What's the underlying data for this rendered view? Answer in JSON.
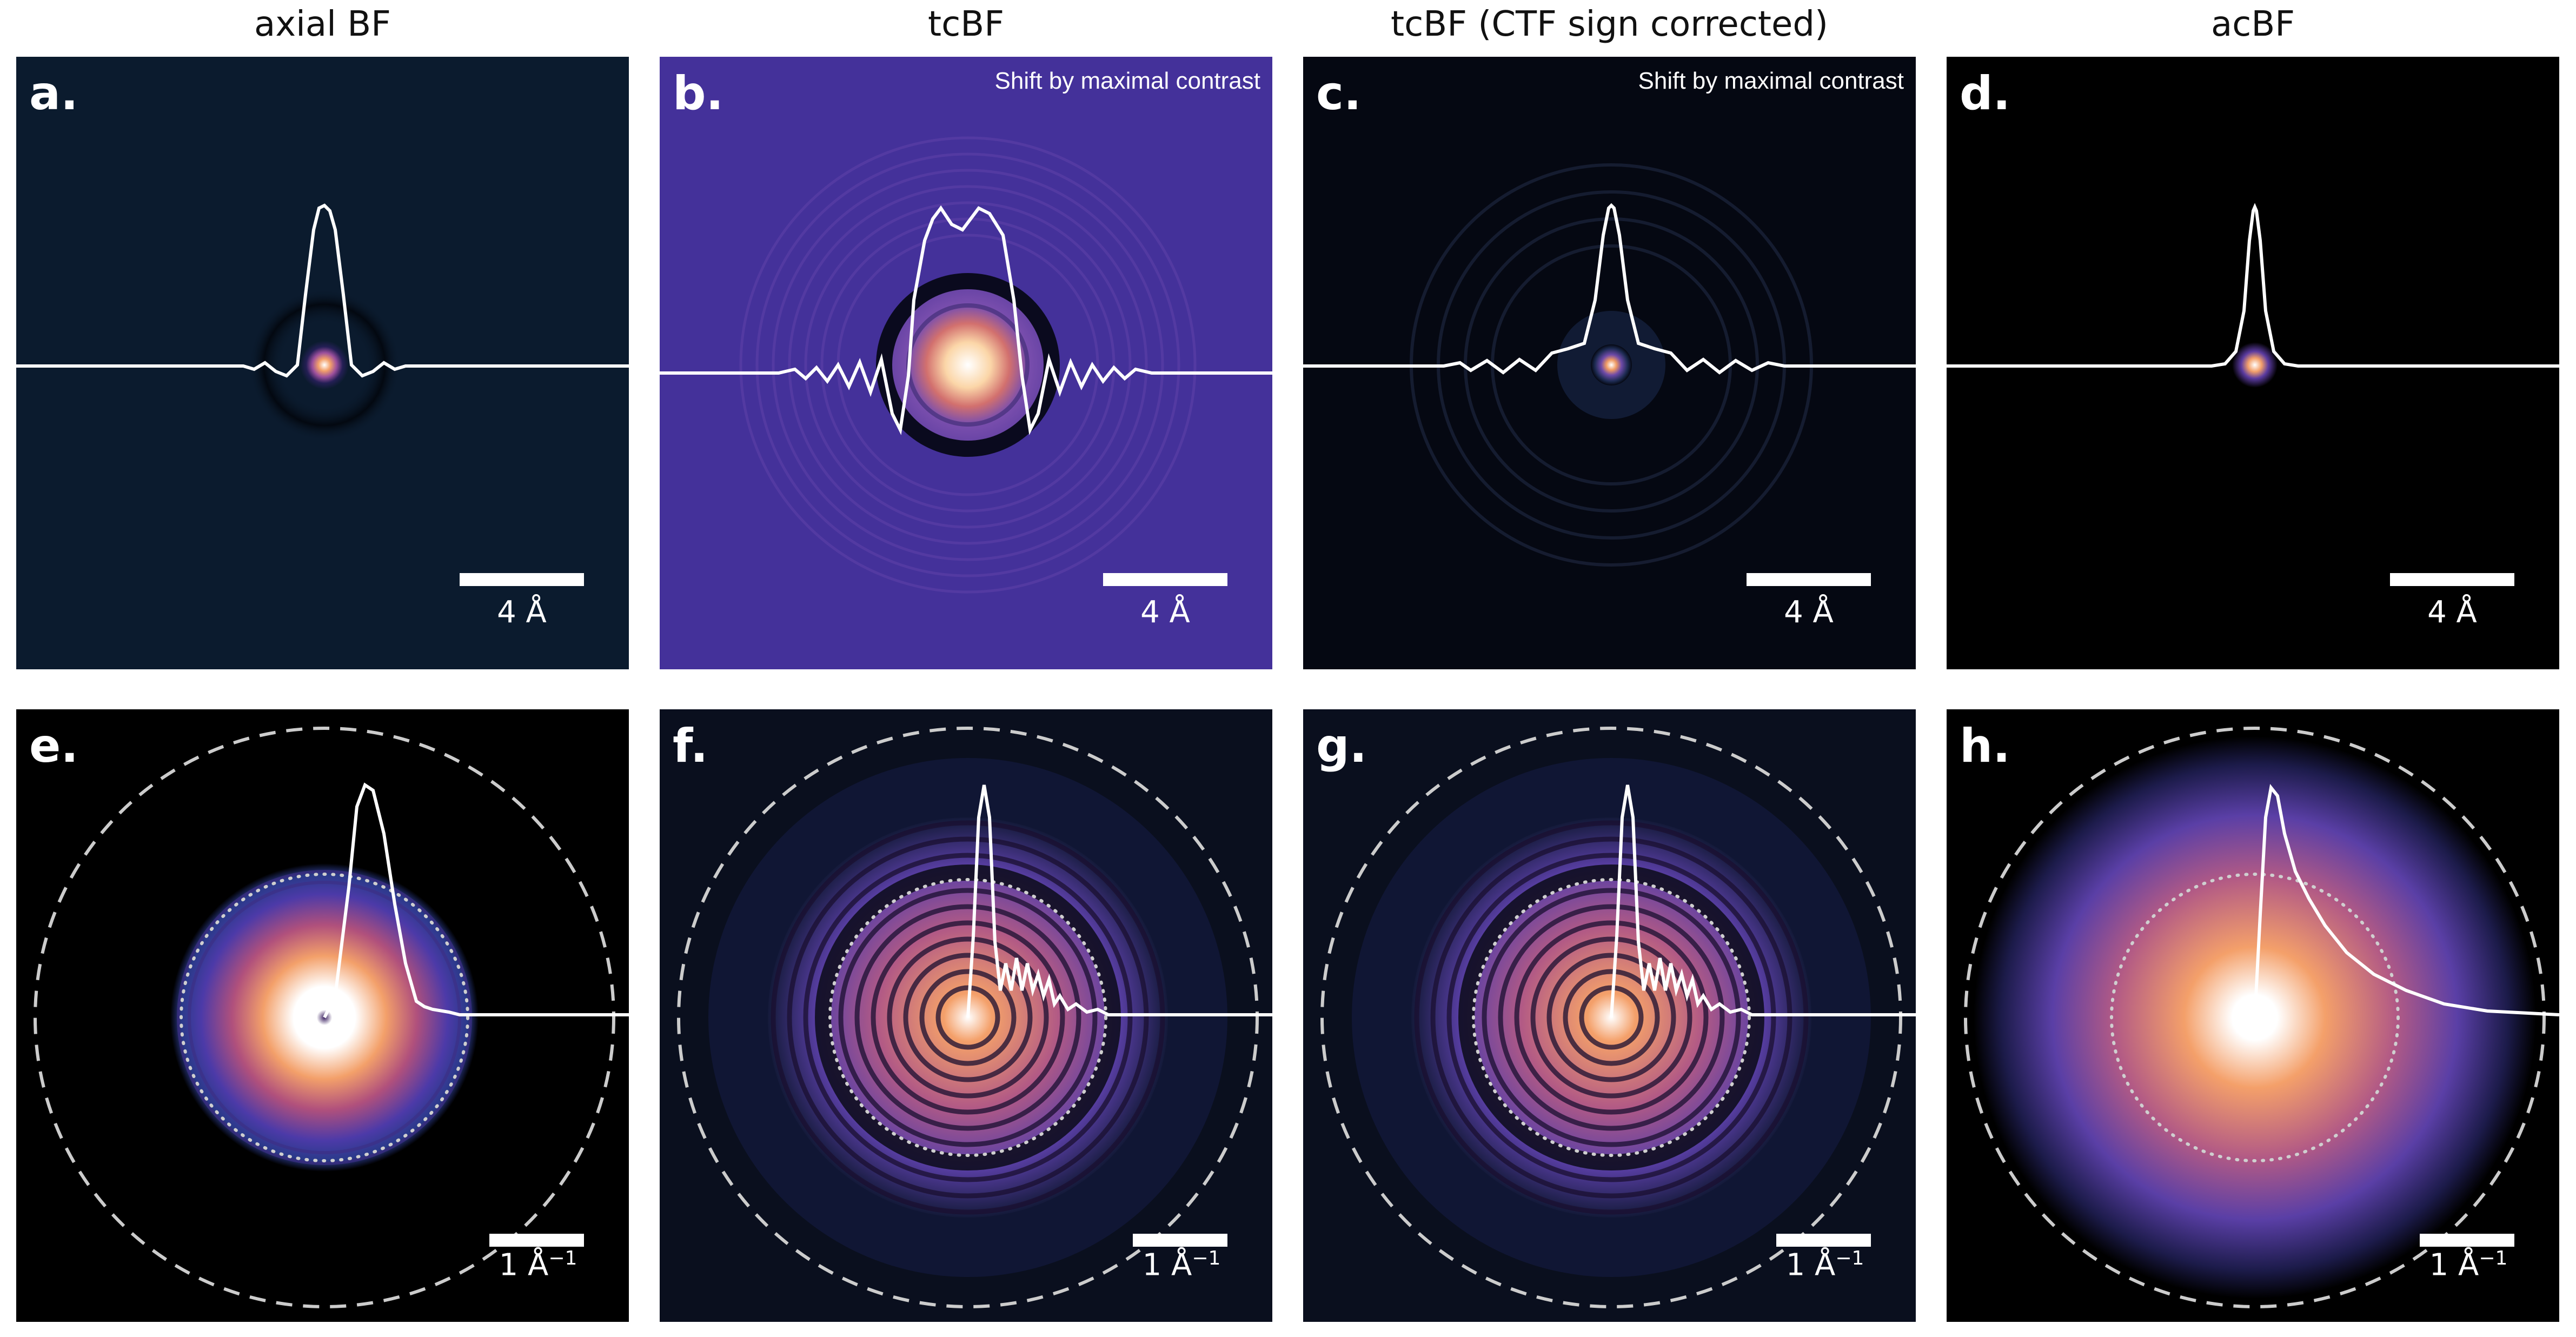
{
  "columns": [
    {
      "title": "axial BF"
    },
    {
      "title": "tcBF"
    },
    {
      "title": "tcBF (CTF sign corrected)"
    },
    {
      "title": "acBF"
    }
  ],
  "top_panels": [
    {
      "letter": "a.",
      "note": "",
      "scale": "4 Å",
      "background": "#0b1b2e"
    },
    {
      "letter": "b.",
      "note": "Shift by maximal contrast",
      "scale": "4 Å",
      "background": "#44319a"
    },
    {
      "letter": "c.",
      "note": "Shift by maximal contrast",
      "scale": "4 Å",
      "background": "#050812"
    },
    {
      "letter": "d.",
      "note": "",
      "scale": "4 Å",
      "background": "#000000"
    }
  ],
  "bottom_panels": [
    {
      "letter": "e.",
      "scale": "1 Å",
      "scale_exp": "−1"
    },
    {
      "letter": "f.",
      "scale": "1 Å",
      "scale_exp": "−1"
    },
    {
      "letter": "g.",
      "scale": "1 Å",
      "scale_exp": "−1"
    },
    {
      "letter": "h.",
      "scale": "1 Å",
      "scale_exp": "−1"
    }
  ],
  "colors": {
    "profile_line": "#ffffff",
    "dashed_circle": "#cccccc",
    "dotted_circle": "#cfcfcf",
    "colormap": [
      "#000000",
      "#1c1b4a",
      "#4a37a8",
      "#7b4fae",
      "#c0607d",
      "#ec8a58",
      "#fbd6a8",
      "#ffffff"
    ]
  }
}
